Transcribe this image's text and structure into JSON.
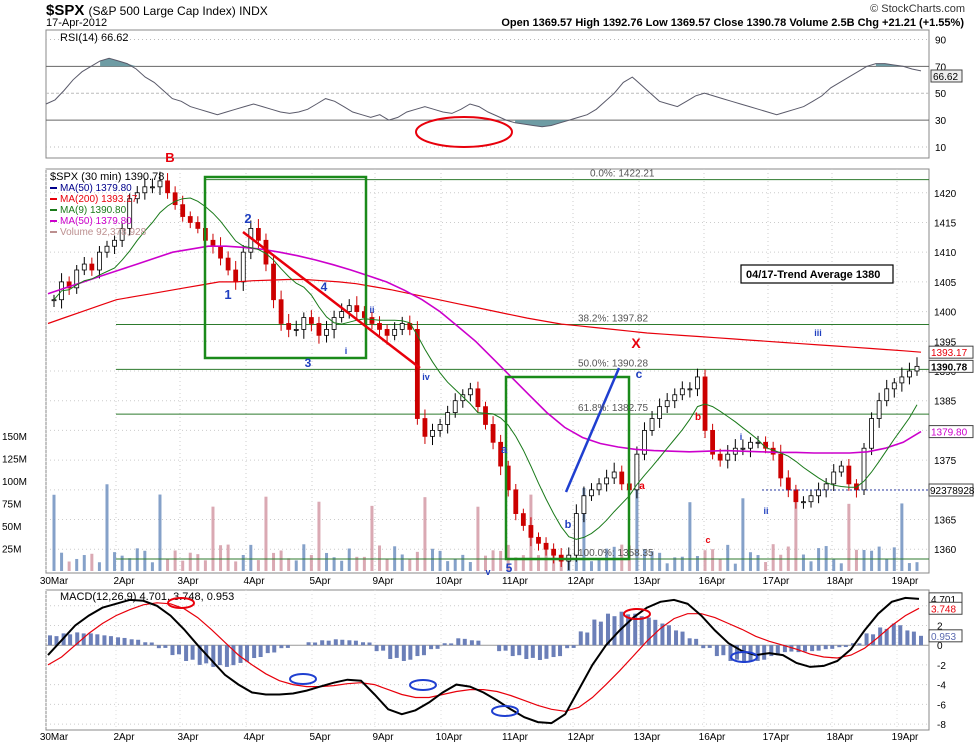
{
  "header": {
    "symbol": "$SPX",
    "name": "(S&P 500 Large Cap Index) INDX",
    "date": "17-Apr-2012",
    "brand": "© StockCharts.com",
    "quote": "Open 1369.57  High 1392.76  Low 1369.57  Close 1390.78  Volume 2.5B  Chg +21.21 (+1.55%)"
  },
  "legend": {
    "title": "$SPX (30 min) 1390.78",
    "items": [
      {
        "label": "MA(50) 1379.80",
        "color": "#00008b"
      },
      {
        "label": "MA(200) 1393.17",
        "color": "#e8000b"
      },
      {
        "label": "MA(9) 1390.80",
        "color": "#1a7a1a"
      },
      {
        "label": "MA(50) 1379.80",
        "color": "#cc00cc"
      },
      {
        "label": "Volume 92,378,928",
        "color": "#bc8f8f"
      }
    ]
  },
  "rsi": {
    "label": "RSI(14) 66.62",
    "ticks": [
      90,
      70,
      50,
      30,
      10
    ],
    "current": "66.62",
    "series": [
      42,
      45,
      52,
      60,
      66,
      70,
      74,
      76,
      74,
      72,
      68,
      62,
      58,
      52,
      46,
      44,
      40,
      38,
      36,
      34,
      36,
      38,
      40,
      42,
      40,
      38,
      36,
      35,
      36,
      38,
      42,
      46,
      44,
      40,
      36,
      34,
      32,
      34,
      30,
      32,
      36,
      38,
      40,
      38,
      36,
      35,
      38,
      42,
      40,
      36,
      33,
      30,
      28,
      27,
      26,
      25,
      26,
      28,
      30,
      32,
      34,
      38,
      44,
      50,
      58,
      62,
      56,
      50,
      44,
      42,
      40,
      44,
      48,
      50,
      48,
      46,
      44,
      42,
      40,
      38,
      36,
      34,
      36,
      38,
      40,
      44,
      48,
      54,
      58,
      62,
      66,
      70,
      72,
      72,
      71,
      70,
      68,
      66.62
    ]
  },
  "chart_data": [
    {
      "type": "line",
      "title": "$SPX (30 min) 1390.78",
      "ylim": [
        1356,
        1424
      ],
      "y_ticks": [
        1420,
        1415,
        1410,
        1405,
        1400,
        1395,
        1390,
        1385,
        1380,
        1375,
        1370,
        1365,
        1360
      ],
      "x_ticks": [
        "30Mar",
        "2Apr",
        "3Apr",
        "4Apr",
        "5Apr",
        "9Apr",
        "10Apr",
        "11Apr",
        "12Apr",
        "13Apr",
        "16Apr",
        "17Apr",
        "18Apr",
        "19Apr"
      ],
      "price_labels": [
        {
          "value": 1393.17,
          "text": "1393.17",
          "color": "#e8000b"
        },
        {
          "value": 1390.78,
          "text": "1390.78",
          "color": "#000"
        },
        {
          "value": 1379.8,
          "text": "1379.80",
          "color": "#cc00cc"
        }
      ],
      "volume_ticks": [
        "150M",
        "125M",
        "100M",
        "75M",
        "50M",
        "25M"
      ],
      "volume_current": "92378928",
      "close": [
        1402,
        1405,
        1404,
        1407,
        1408,
        1407,
        1410,
        1411,
        1412,
        1414,
        1419,
        1420,
        1421,
        1421,
        1422,
        1420,
        1418,
        1416,
        1415,
        1414,
        1412,
        1411,
        1409,
        1407,
        1405,
        1410,
        1414,
        1412,
        1408,
        1402,
        1398,
        1397,
        1397,
        1399,
        1398,
        1396,
        1397,
        1399,
        1400,
        1401,
        1400,
        1399,
        1398,
        1397,
        1396,
        1397,
        1398,
        1397,
        1382,
        1379,
        1380,
        1381,
        1383,
        1385,
        1386,
        1387,
        1384,
        1381,
        1378,
        1374,
        1370,
        1366,
        1364,
        1362,
        1361,
        1360,
        1359,
        1358,
        1359,
        1366,
        1369,
        1370,
        1371,
        1372,
        1373,
        1371,
        1370,
        1376,
        1380,
        1382,
        1384,
        1385,
        1386,
        1387,
        1387,
        1389,
        1380,
        1376,
        1375,
        1376,
        1377,
        1377,
        1378,
        1378,
        1377,
        1376,
        1372,
        1370,
        1368,
        1368,
        1369,
        1370,
        1371,
        1373,
        1374,
        1371,
        1370,
        1377,
        1382,
        1385,
        1387,
        1388,
        1389,
        1390,
        1390.78
      ],
      "ma200": [
        1398,
        1399,
        1400,
        1401,
        1402,
        1402.5,
        1403,
        1403.5,
        1404,
        1404.5,
        1405,
        1405,
        1405.2,
        1405.3,
        1405.4,
        1405.4,
        1405.2,
        1405,
        1404.7,
        1404.2,
        1403.7,
        1403.1,
        1402.5,
        1401.9,
        1401.3,
        1400.7,
        1400.1,
        1399.5,
        1398.9,
        1398.4,
        1397.9,
        1397.6,
        1397.3,
        1397,
        1396.7,
        1396.4,
        1396.2,
        1396,
        1395.8,
        1395.6,
        1395.4,
        1395.2,
        1395,
        1394.8,
        1394.6,
        1394.4,
        1394.2,
        1394,
        1393.8,
        1393.6,
        1393.4,
        1393.17
      ],
      "ma50": [
        1403,
        1404,
        1405,
        1406,
        1407,
        1408,
        1409,
        1410,
        1410.5,
        1411,
        1411,
        1410.8,
        1410.5,
        1410,
        1409.4,
        1408.7,
        1407.9,
        1407,
        1406,
        1405,
        1403.6,
        1402,
        1400,
        1397.5,
        1395,
        1392,
        1389,
        1386,
        1383,
        1380.5,
        1378.8,
        1377.8,
        1377.2,
        1376.8,
        1376.6,
        1376.5,
        1376.4,
        1376.5,
        1376.6,
        1376.5,
        1376.4,
        1376.3,
        1376.3,
        1376.2,
        1376.2,
        1376.2,
        1376.4,
        1377,
        1378,
        1379.8
      ]
    },
    {
      "type": "line",
      "title": "MACD(12,26,9) 4.701, 3.748, 0.953",
      "ylim": [
        -8.6,
        5.6
      ],
      "y_ticks": [
        4,
        2,
        0,
        -2,
        -4,
        -6,
        -8
      ],
      "price_labels": [
        {
          "value": 4.701,
          "text": "4.701",
          "color": "#000"
        },
        {
          "value": 3.748,
          "text": "3.748",
          "color": "#e8000b"
        },
        {
          "value": 0.953,
          "text": "0.953",
          "color": "#5b6ab0"
        }
      ],
      "macd": [
        -1,
        0.5,
        2,
        3,
        3.8,
        4.2,
        4.6,
        4.5,
        4,
        3,
        1.6,
        0,
        -1.5,
        -3,
        -4,
        -4.8,
        -5,
        -5,
        -4.9,
        -4.6,
        -4.2,
        -3.8,
        -3.5,
        -3.6,
        -5,
        -6.5,
        -7,
        -6.6,
        -5.8,
        -4.8,
        -4,
        -4.2,
        -4.8,
        -5.6,
        -6.5,
        -7.3,
        -7.8,
        -7.9,
        -7,
        -4.5,
        -2,
        0,
        1.5,
        2.8,
        3.8,
        4.4,
        4.6,
        4.2,
        3,
        1.5,
        0.2,
        -0.6,
        -1,
        -0.8,
        -1,
        -1.8,
        -2.2,
        -2.1,
        -1.6,
        -0.4,
        1.5,
        3.2,
        4.4,
        4.8,
        4.701
      ],
      "signal": [
        -2,
        -1.2,
        0,
        1.2,
        2.2,
        3,
        3.6,
        4.1,
        4.3,
        4.2,
        3.7,
        2.8,
        1.6,
        0.3,
        -1,
        -2,
        -2.9,
        -3.6,
        -4,
        -4.2,
        -4.2,
        -4.1,
        -3.9,
        -3.8,
        -4,
        -4.5,
        -5,
        -5.3,
        -5.3,
        -5,
        -4.7,
        -4.5,
        -4.5,
        -4.7,
        -5.1,
        -5.6,
        -6.1,
        -6.5,
        -6.7,
        -6.3,
        -5.3,
        -4,
        -2.6,
        -1.1,
        0.4,
        1.7,
        2.7,
        3.2,
        3.2,
        2.8,
        2.2,
        1.6,
        0.9,
        0.4,
        0,
        -0.4,
        -0.9,
        -1.2,
        -1.3,
        -1,
        -0.3,
        0.8,
        2,
        3,
        3.748
      ],
      "histogram": [
        1,
        1.2,
        1.3,
        1.2,
        1,
        0.8,
        0.6,
        0.3,
        -0.3,
        -1,
        -1.6,
        -2,
        -2.2,
        -2.2,
        -1.8,
        -1.3,
        -0.8,
        -0.3,
        0,
        0.3,
        0.5,
        0.6,
        0.5,
        0.3,
        -0.6,
        -1.4,
        -1.6,
        -1.1,
        -0.4,
        0.2,
        0.7,
        0.5,
        0,
        -0.6,
        -1.1,
        -1.4,
        -1.5,
        -1.2,
        -0.3,
        1.4,
        2.6,
        3.2,
        3.4,
        3.2,
        2.8,
        2.2,
        1.5,
        0.7,
        -0.3,
        -1.1,
        -1.6,
        -1.8,
        -1.6,
        -1.1,
        -0.7,
        -0.7,
        -0.6,
        -0.4,
        -0.2,
        0.2,
        1.2,
        1.8,
        2.2,
        1.5,
        0.953
      ]
    }
  ],
  "annotations": {
    "rsi_oversold_ellipse": "",
    "wave_labels": [
      {
        "text": "B",
        "color": "#e8000b"
      },
      {
        "text": "2",
        "color": "#1f3fbf"
      },
      {
        "text": "1",
        "color": "#1f3fbf"
      },
      {
        "text": "3",
        "color": "#1f3fbf"
      },
      {
        "text": "4",
        "color": "#1f3fbf"
      },
      {
        "text": "i",
        "color": "#1f3fbf"
      },
      {
        "text": "ii",
        "color": "#1f3fbf"
      },
      {
        "text": "iii",
        "color": "#1f3fbf"
      },
      {
        "text": "iv",
        "color": "#1f3fbf"
      },
      {
        "text": "v",
        "color": "#1f3fbf"
      },
      {
        "text": "5",
        "color": "#1f3fbf"
      },
      {
        "text": "a",
        "color": "#1f3fbf"
      },
      {
        "text": "b",
        "color": "#1f3fbf"
      },
      {
        "text": "c",
        "color": "#1f3fbf"
      },
      {
        "text": "X",
        "color": "#e8000b"
      },
      {
        "text": "a",
        "color": "#e8000b"
      },
      {
        "text": "b",
        "color": "#e8000b"
      },
      {
        "text": "c",
        "color": "#e8000b"
      },
      {
        "text": "i",
        "color": "#1f3fbf"
      },
      {
        "text": "ii",
        "color": "#1f3fbf"
      },
      {
        "text": "iii",
        "color": "#1f3fbf"
      },
      {
        "text": "C",
        "color": "#e8000b"
      }
    ],
    "fib_labels": [
      "0.0%: 1422.21",
      "38.2%: 1397.82",
      "50.0%: 1390.28",
      "61.8%: 1382.75",
      "100.0%: 1358.35"
    ],
    "trend_box": "04/17-Trend Average 1380"
  }
}
